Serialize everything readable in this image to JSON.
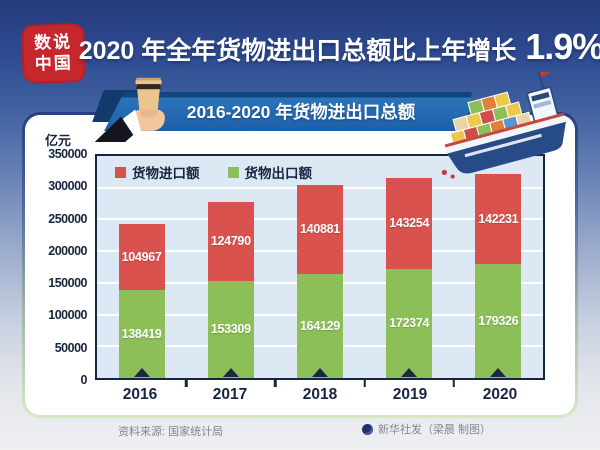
{
  "page": {
    "stamp": {
      "line1": "数说",
      "line2": "中国"
    },
    "title": {
      "main": "2020 年全年货物进出口总额比上年增长",
      "highlight": "1.9%"
    },
    "banner": {
      "text": "2016-2020 年货物进出口总额"
    },
    "footer": {
      "source": "资料来源: 国家统计局",
      "credit": "新华社发（梁晨 制图）"
    }
  },
  "chart_data": {
    "type": "bar",
    "stacked": true,
    "title": "2016-2020 年货物进出口总额",
    "unit_label": "亿元",
    "categories": [
      "2016",
      "2017",
      "2018",
      "2019",
      "2020"
    ],
    "series": [
      {
        "name": "货物出口额",
        "color": "#8cbf57",
        "values": [
          138419,
          153309,
          164129,
          172374,
          179326
        ]
      },
      {
        "name": "货物进口额",
        "color": "#d9524e",
        "values": [
          104967,
          124790,
          140881,
          143254,
          142231
        ]
      }
    ],
    "legend": [
      {
        "label": "货物进口额",
        "color": "#d9524e"
      },
      {
        "label": "货物出口额",
        "color": "#8cbf57"
      }
    ],
    "legend_position": "top-left-inside",
    "grid": true,
    "ylim": [
      0,
      350000
    ],
    "ytick_step": 50000,
    "yticks": [
      "350000",
      "300000",
      "250000",
      "200000",
      "150000",
      "100000",
      "50000",
      "0"
    ]
  }
}
